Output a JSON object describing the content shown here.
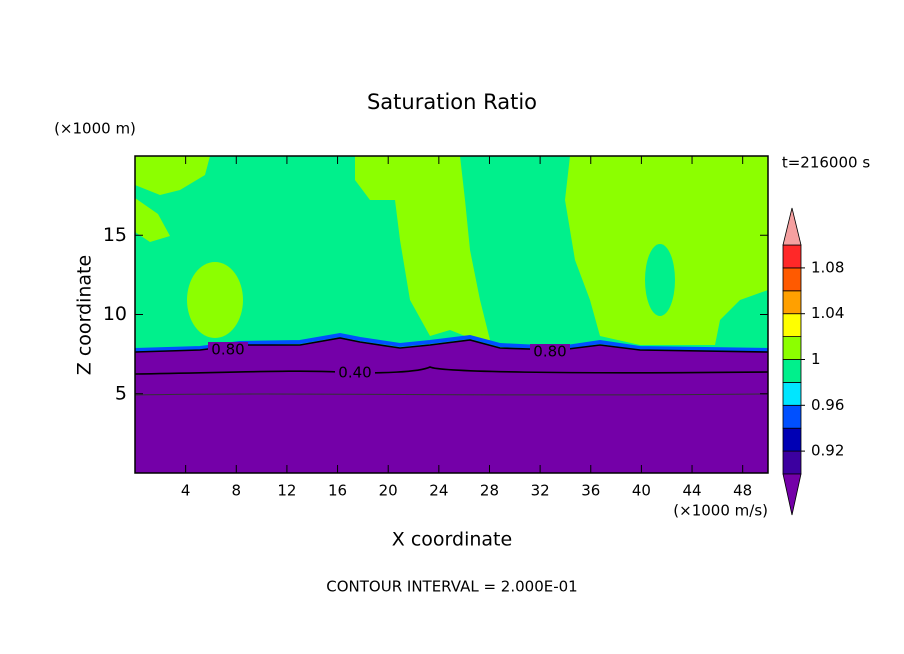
{
  "chart_data": {
    "type": "contour",
    "title": "Saturation Ratio",
    "x_label": "X coordinate",
    "y_label": "Z coordinate",
    "x_unit": "(×1000 m/s)",
    "y_unit": "(×1000 m)",
    "time_label": "t=216000 s",
    "footnote": "CONTOUR INTERVAL = 2.000E-01",
    "xlim": [
      0,
      50
    ],
    "xticks": [
      4,
      8,
      12,
      16,
      20,
      24,
      28,
      32,
      36,
      40,
      44,
      48
    ],
    "ylim": [
      0,
      20
    ],
    "yticks": [
      5,
      10,
      15
    ],
    "colorbar": {
      "levels": [
        0.9,
        0.92,
        0.94,
        0.96,
        0.98,
        1.0,
        1.02,
        1.04,
        1.06,
        1.08,
        1.1
      ],
      "ticks": [
        0.92,
        0.96,
        1,
        1.04,
        1.08
      ],
      "colors": [
        "#7400a8",
        "#3c00a0",
        "#0000b4",
        "#0050ff",
        "#00e6ff",
        "#00f08c",
        "#8cff00",
        "#ffff00",
        "#ffa000",
        "#ff5a00",
        "#ff2828",
        "#f5a0a0"
      ]
    },
    "contours": [
      {
        "value": 0.8,
        "labels": [
          "0.80",
          "0.80"
        ]
      },
      {
        "value": 0.4,
        "labels": [
          "0.40"
        ]
      }
    ]
  }
}
